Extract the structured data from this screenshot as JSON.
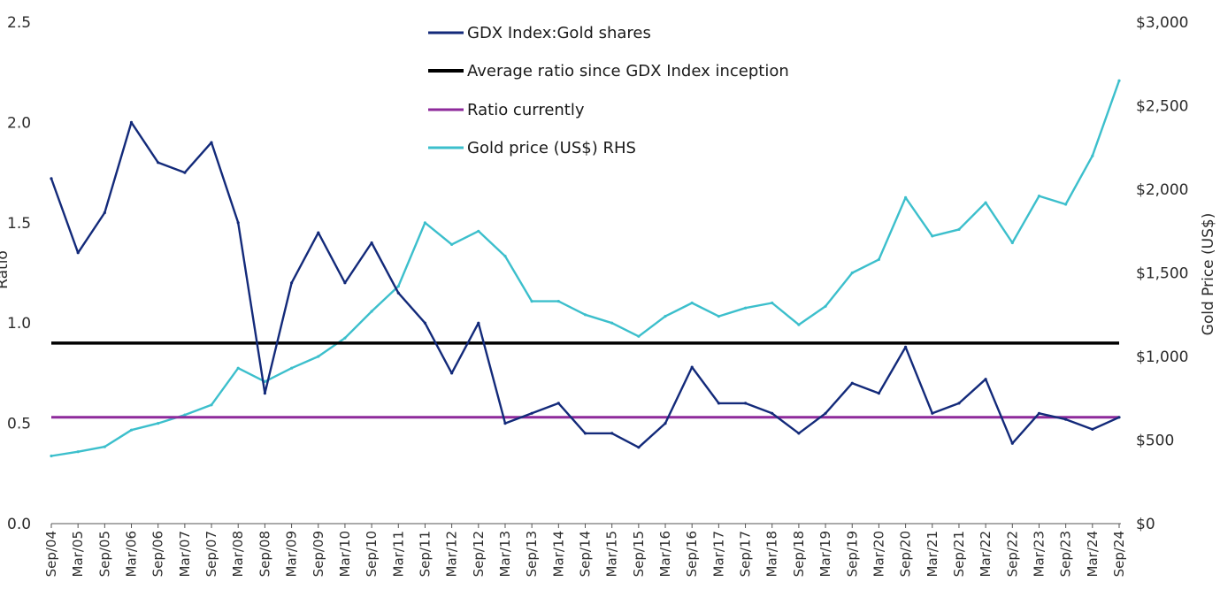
{
  "chart_data": {
    "type": "line",
    "title": "",
    "ylabel_left": "Ratio",
    "ylabel_right": "Gold Price (US$)",
    "ylim_left": [
      0,
      2.5
    ],
    "ylim_right": [
      0,
      3000
    ],
    "yticks_left": [
      "0.0",
      "0.5",
      "1.0",
      "1.5",
      "2.0",
      "2.5"
    ],
    "yticks_right": [
      "$0",
      "$500",
      "$1,000",
      "$1,500",
      "$2,000",
      "$2,500",
      "$3,000"
    ],
    "x_range": [
      "Sep/04",
      "Sep/24"
    ],
    "x_ticks": [
      "Sep/04",
      "Mar/05",
      "Sep/05",
      "Mar/06",
      "Sep/06",
      "Mar/07",
      "Sep/07",
      "Mar/08",
      "Sep/08",
      "Mar/09",
      "Sep/09",
      "Mar/10",
      "Sep/10",
      "Mar/11",
      "Sep/11",
      "Mar/12",
      "Sep/12",
      "Mar/13",
      "Sep/13",
      "Mar/14",
      "Sep/14",
      "Mar/15",
      "Sep/15",
      "Mar/16",
      "Sep/16",
      "Mar/17",
      "Sep/17",
      "Mar/18",
      "Sep/18",
      "Mar/19",
      "Sep/19",
      "Mar/20",
      "Sep/20",
      "Mar/21",
      "Sep/21",
      "Mar/22",
      "Sep/22",
      "Mar/23",
      "Sep/23",
      "Mar/24",
      "Sep/24"
    ],
    "grid": false,
    "legend_position": "top-center",
    "series": [
      {
        "name": "GDX Index:Gold shares",
        "axis": "left",
        "color": "#132a7a",
        "x": [
          "Sep/04",
          "Mar/05",
          "Sep/05",
          "Mar/06",
          "Sep/06",
          "Mar/07",
          "Sep/07",
          "Mar/08",
          "Sep/08",
          "Mar/09",
          "Sep/09",
          "Mar/10",
          "Sep/10",
          "Mar/11",
          "Sep/11",
          "Mar/12",
          "Sep/12",
          "Mar/13",
          "Sep/13",
          "Mar/14",
          "Sep/14",
          "Mar/15",
          "Sep/15",
          "Mar/16",
          "Sep/16",
          "Mar/17",
          "Sep/17",
          "Mar/18",
          "Sep/18",
          "Mar/19",
          "Sep/19",
          "Mar/20",
          "Sep/20",
          "Mar/21",
          "Sep/21",
          "Mar/22",
          "Sep/22",
          "Mar/23",
          "Sep/23",
          "Mar/24",
          "Sep/24"
        ],
        "values": [
          1.72,
          1.35,
          1.55,
          2.0,
          1.8,
          1.75,
          1.9,
          1.5,
          0.65,
          1.2,
          1.45,
          1.2,
          1.4,
          1.15,
          1.0,
          0.75,
          1.0,
          0.5,
          0.55,
          0.6,
          0.45,
          0.45,
          0.38,
          0.5,
          0.78,
          0.6,
          0.6,
          0.55,
          0.45,
          0.55,
          0.7,
          0.65,
          0.88,
          0.55,
          0.6,
          0.72,
          0.4,
          0.55,
          0.52,
          0.47,
          0.53
        ]
      },
      {
        "name": "Average ratio since GDX Index inception",
        "axis": "left",
        "color": "#000000",
        "x": [
          "Sep/04",
          "Sep/24"
        ],
        "values": [
          0.9,
          0.9
        ]
      },
      {
        "name": "Ratio currently",
        "axis": "left",
        "color": "#8e2a9b",
        "x": [
          "Sep/04",
          "Sep/24"
        ],
        "values": [
          0.53,
          0.53
        ]
      },
      {
        "name": "Gold price (US$) RHS",
        "axis": "right",
        "color": "#3cbfcc",
        "x": [
          "Sep/04",
          "Mar/05",
          "Sep/05",
          "Mar/06",
          "Sep/06",
          "Mar/07",
          "Sep/07",
          "Mar/08",
          "Sep/08",
          "Mar/09",
          "Sep/09",
          "Mar/10",
          "Sep/10",
          "Mar/11",
          "Sep/11",
          "Mar/12",
          "Sep/12",
          "Mar/13",
          "Sep/13",
          "Mar/14",
          "Sep/14",
          "Mar/15",
          "Sep/15",
          "Mar/16",
          "Sep/16",
          "Mar/17",
          "Sep/17",
          "Mar/18",
          "Sep/18",
          "Mar/19",
          "Sep/19",
          "Mar/20",
          "Sep/20",
          "Mar/21",
          "Sep/21",
          "Mar/22",
          "Sep/22",
          "Mar/23",
          "Sep/23",
          "Mar/24",
          "Sep/24"
        ],
        "values": [
          405,
          430,
          460,
          560,
          600,
          650,
          710,
          930,
          850,
          930,
          1000,
          1110,
          1270,
          1420,
          1800,
          1670,
          1750,
          1600,
          1330,
          1330,
          1250,
          1200,
          1120,
          1240,
          1320,
          1240,
          1290,
          1320,
          1190,
          1300,
          1500,
          1580,
          1950,
          1720,
          1760,
          1920,
          1680,
          1960,
          1910,
          2200,
          2650
        ]
      }
    ]
  }
}
